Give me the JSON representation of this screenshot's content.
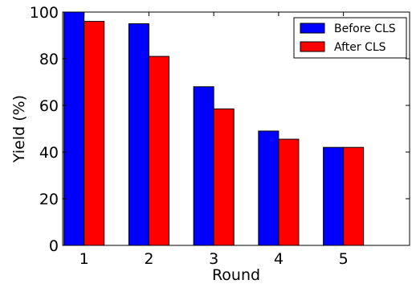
{
  "chart_data": {
    "type": "bar",
    "categories": [
      "1",
      "2",
      "3",
      "4",
      "5"
    ],
    "series": [
      {
        "name": "Before CLS",
        "color": "#0000ff",
        "values": [
          100,
          95,
          68,
          49,
          42
        ]
      },
      {
        "name": "After CLS",
        "color": "#ff0000",
        "values": [
          96,
          81,
          58.5,
          45.5,
          42
        ]
      }
    ],
    "xlabel": "Round",
    "ylabel": "Yield (%)",
    "ylim": [
      0,
      100
    ],
    "yticks": [
      0,
      20,
      40,
      60,
      80,
      100
    ],
    "grid": false,
    "legend_position": "top-right"
  }
}
